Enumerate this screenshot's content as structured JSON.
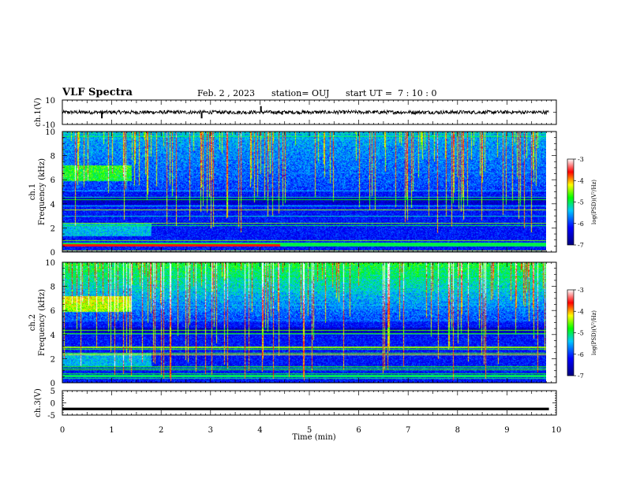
{
  "header": {
    "title": "VLF Spectra",
    "date": "Feb. 2 , 2023",
    "station": "station= OUJ",
    "start": "start UT =  7 : 10 : 0"
  },
  "chart_data": [
    {
      "type": "line",
      "panel": "ch1-waveform",
      "ylabel": "ch.1(V)",
      "ylim": [
        -10,
        10
      ],
      "yticks": [
        "10",
        "-10"
      ],
      "baseline": 0,
      "noise_amplitude": 1.5,
      "spikes": [
        {
          "x": 0.8,
          "y": -5
        },
        {
          "x": 2.82,
          "y": -5
        },
        {
          "x": 4.02,
          "y": 5
        },
        {
          "x": 4.45,
          "y": -2
        }
      ]
    },
    {
      "type": "heatmap",
      "panel": "ch1-spectrogram",
      "ylabel": "ch.1\nFrequency (kHz)",
      "ylim": [
        0,
        10
      ],
      "yticks": [
        "0",
        "2",
        "4",
        "6",
        "8",
        "10"
      ],
      "colorbar": {
        "label": "log(PSD)(V²/Hz)",
        "min": -7,
        "max": -3,
        "ticks": [
          "-3",
          "-4",
          "-5",
          "-6",
          "-7"
        ]
      },
      "band_6khz_until_min": 1.4,
      "band_2khz_until_min": 1.8
    },
    {
      "type": "heatmap",
      "panel": "ch2-spectrogram",
      "ylabel": "ch.2\nFrequency (kHz)",
      "ylim": [
        0,
        10
      ],
      "yticks": [
        "0",
        "2",
        "4",
        "6",
        "8",
        "10"
      ],
      "colorbar": {
        "label": "log(PSD)(V²/Hz)",
        "min": -7,
        "max": -3,
        "ticks": [
          "-3",
          "-4",
          "-5",
          "-6",
          "-7"
        ]
      },
      "band_6khz_until_min": 1.4,
      "band_2khz_until_min": 1.8
    },
    {
      "type": "line",
      "panel": "ch3-waveform",
      "ylabel": "ch.3(V)",
      "ylim": [
        -5,
        5
      ],
      "yticks": [
        "5",
        "0",
        "-5"
      ],
      "baseline": -2.5
    }
  ],
  "x_axis": {
    "xlabel": "Time (min)",
    "xlim": [
      0,
      10
    ],
    "ticks": [
      "0",
      "1",
      "2",
      "3",
      "4",
      "5",
      "6",
      "7",
      "8",
      "9",
      "10"
    ],
    "data_end": 9.85
  },
  "colors": {
    "cmap": [
      "#000080",
      "#0000ff",
      "#00ff00",
      "#ffff00",
      "#ff0000",
      "#ffffff"
    ]
  }
}
